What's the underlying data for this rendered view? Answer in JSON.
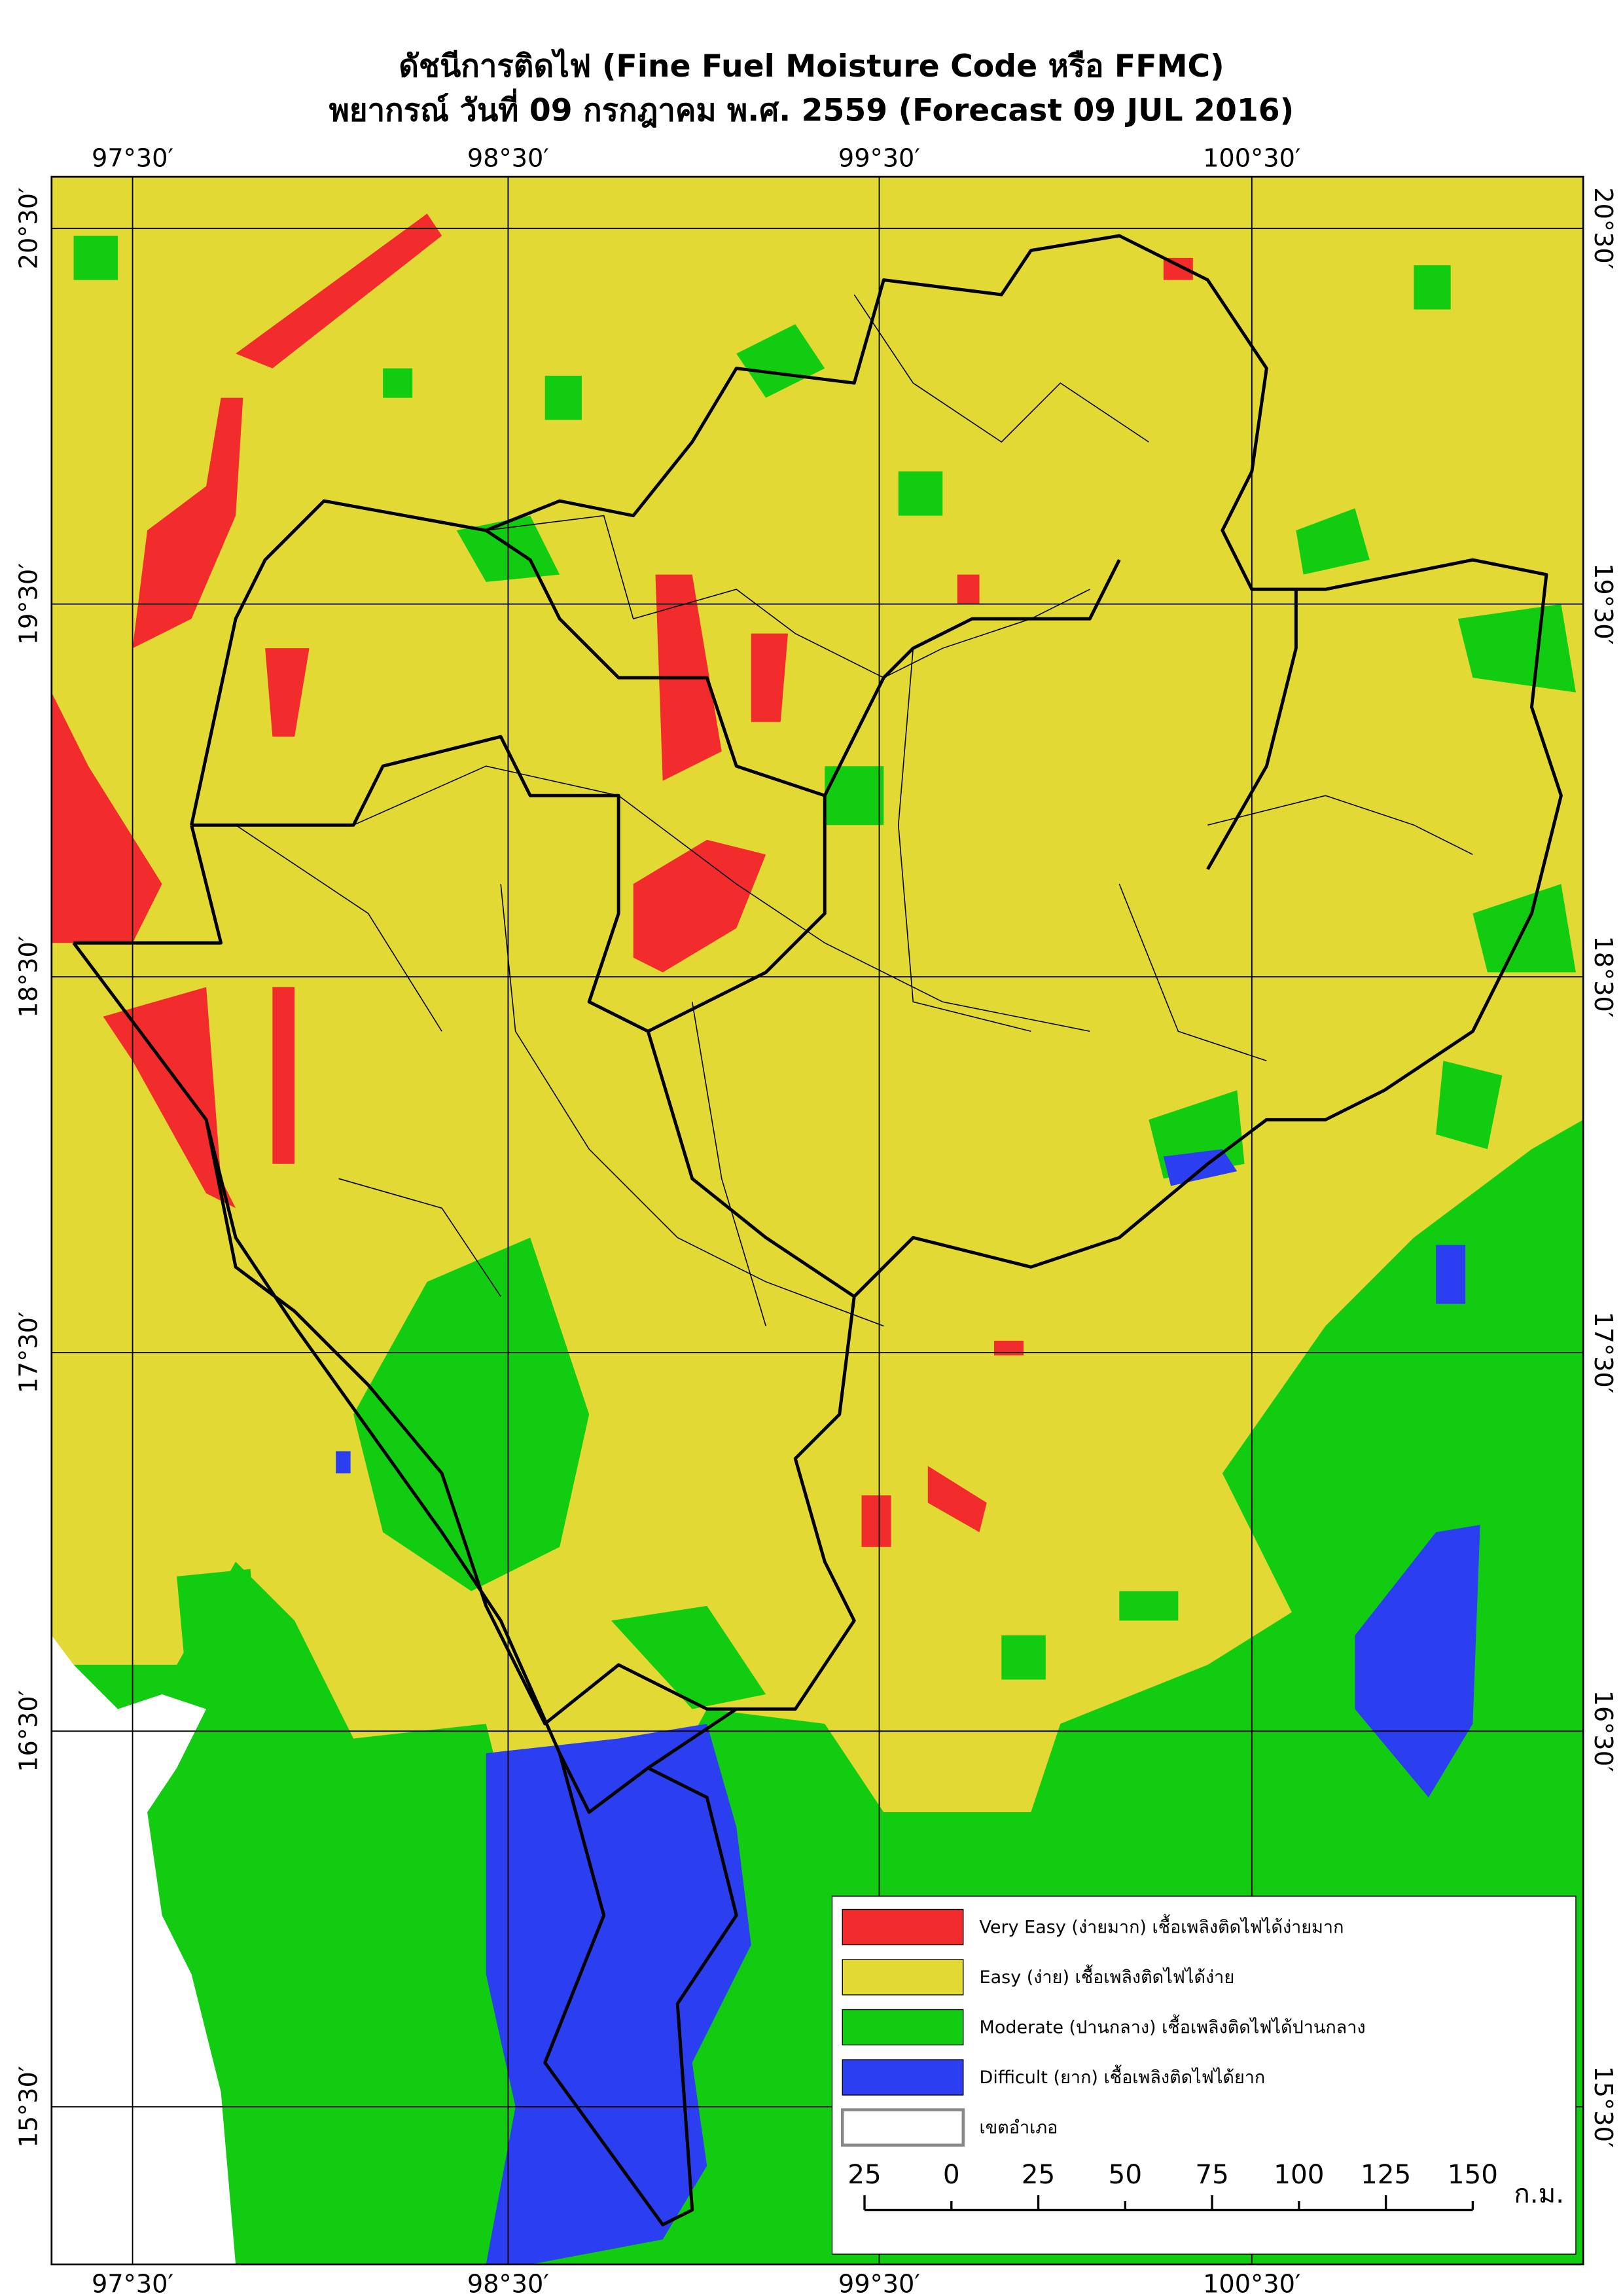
{
  "header": {
    "title": "ดัชนีการติดไฟ (Fine Fuel Moisture Code หรือ FFMC)",
    "subtitle": "พยากรณ์ วันที่ 09 กรกฎาคม พ.ศ. 2559 (Forecast 09 JUL 2016)"
  },
  "grid": {
    "longitudes": [
      "97°30′",
      "98°30′",
      "99°30′",
      "100°30′"
    ],
    "latitudes": [
      "20°30′",
      "19°30′",
      "18°30′",
      "17°30′",
      "16°30′",
      "15°30′"
    ]
  },
  "legend": [
    {
      "label": "Very Easy (ง่ายมาก) เชื้อเพลิงติดไฟได้ง่ายมาก",
      "color": "#f22c2c"
    },
    {
      "label": "Easy (ง่าย) เชื้อเพลิงติดไฟได้ง่าย",
      "color": "#e3d934"
    },
    {
      "label": "Moderate (ปานกลาง) เชื้อเพลิงติดไฟได้ปานกลาง",
      "color": "#12cc12"
    },
    {
      "label": "Difficult (ยาก) เชื้อเพลิงติดไฟได้ยาก",
      "color": "#2b3ff0"
    },
    {
      "label": "เขตอำเภอ",
      "color": "#ffffff"
    }
  ],
  "scale_bar": {
    "labels": [
      "25",
      "0",
      "25",
      "50",
      "75",
      "100",
      "125",
      "150"
    ],
    "unit": "ก.ม."
  }
}
